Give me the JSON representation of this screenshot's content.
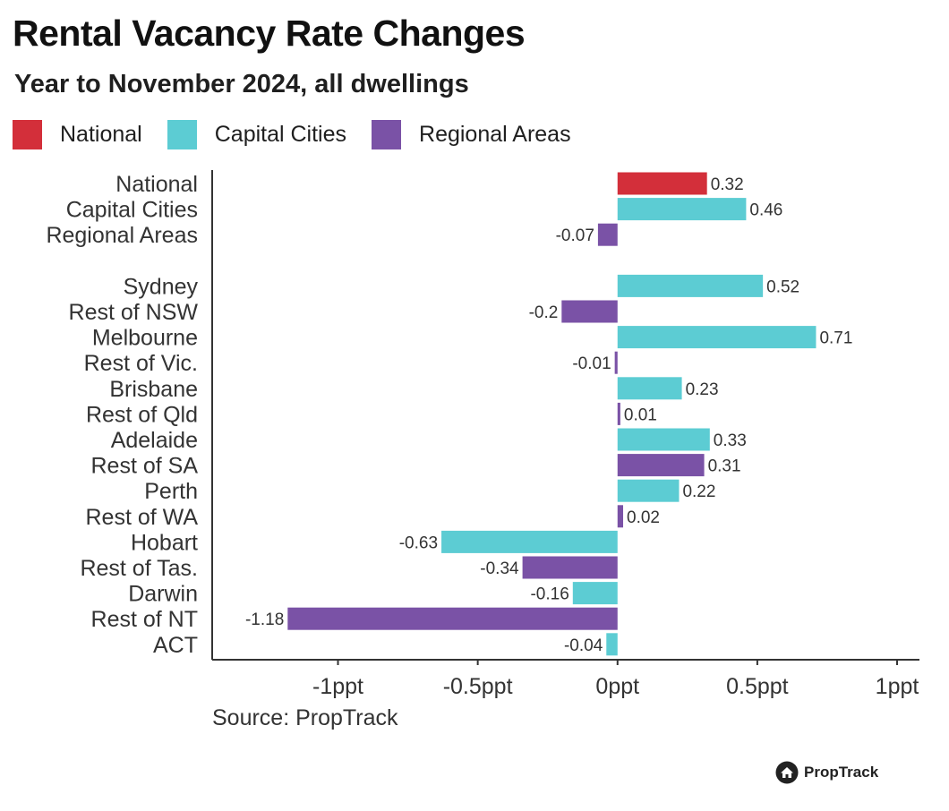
{
  "title": "Rental Vacancy Rate Changes",
  "subtitle": "Year to November 2024, all dwellings",
  "legend": [
    {
      "label": "National",
      "color": "#d32f3a"
    },
    {
      "label": "Capital Cities",
      "color": "#5cccd3"
    },
    {
      "label": "Regional Areas",
      "color": "#7a52a6"
    }
  ],
  "source": "Source: PropTrack",
  "brand": {
    "name": "PropTrack",
    "icon": "proptrack-house-icon"
  },
  "chart_data": {
    "type": "bar",
    "orientation": "horizontal",
    "title": "Rental Vacancy Rate Changes",
    "subtitle": "Year to November 2024, all dwellings",
    "xlabel": "",
    "ylabel": "",
    "xlim": [
      -1.45,
      1.08
    ],
    "ticks": [
      {
        "value": -1,
        "label": "-1ppt"
      },
      {
        "value": -0.5,
        "label": "-0.5ppt"
      },
      {
        "value": 0,
        "label": "0ppt"
      },
      {
        "value": 0.5,
        "label": "0.5ppt"
      },
      {
        "value": 1,
        "label": "1ppt"
      }
    ],
    "grid": false,
    "legend_position": "top-left",
    "groups": {
      "National": "#d32f3a",
      "Capital Cities": "#5cccd3",
      "Regional Areas": "#7a52a6"
    },
    "bars": [
      {
        "label": "National",
        "value": 0.32,
        "text": "0.32",
        "group": "National"
      },
      {
        "label": "Capital Cities",
        "value": 0.46,
        "text": "0.46",
        "group": "Capital Cities"
      },
      {
        "label": "Regional Areas",
        "value": -0.07,
        "text": "-0.07",
        "group": "Regional Areas"
      },
      {
        "label": "Sydney",
        "value": 0.52,
        "text": "0.52",
        "group": "Capital Cities"
      },
      {
        "label": "Rest of NSW",
        "value": -0.2,
        "text": "-0.2",
        "group": "Regional Areas"
      },
      {
        "label": "Melbourne",
        "value": 0.71,
        "text": "0.71",
        "group": "Capital Cities"
      },
      {
        "label": "Rest of Vic.",
        "value": -0.01,
        "text": "-0.01",
        "group": "Regional Areas"
      },
      {
        "label": "Brisbane",
        "value": 0.23,
        "text": "0.23",
        "group": "Capital Cities"
      },
      {
        "label": "Rest of Qld",
        "value": 0.01,
        "text": "0.01",
        "group": "Regional Areas"
      },
      {
        "label": "Adelaide",
        "value": 0.33,
        "text": "0.33",
        "group": "Capital Cities"
      },
      {
        "label": "Rest of SA",
        "value": 0.31,
        "text": "0.31",
        "group": "Regional Areas"
      },
      {
        "label": "Perth",
        "value": 0.22,
        "text": "0.22",
        "group": "Capital Cities"
      },
      {
        "label": "Rest of WA",
        "value": 0.02,
        "text": "0.02",
        "group": "Regional Areas"
      },
      {
        "label": "Hobart",
        "value": -0.63,
        "text": "-0.63",
        "group": "Capital Cities"
      },
      {
        "label": "Rest of Tas.",
        "value": -0.34,
        "text": "-0.34",
        "group": "Regional Areas"
      },
      {
        "label": "Darwin",
        "value": -0.16,
        "text": "-0.16",
        "group": "Capital Cities"
      },
      {
        "label": "Rest of NT",
        "value": -1.18,
        "text": "-1.18",
        "group": "Regional Areas"
      },
      {
        "label": "ACT",
        "value": -0.04,
        "text": "-0.04",
        "group": "Capital Cities"
      }
    ]
  }
}
